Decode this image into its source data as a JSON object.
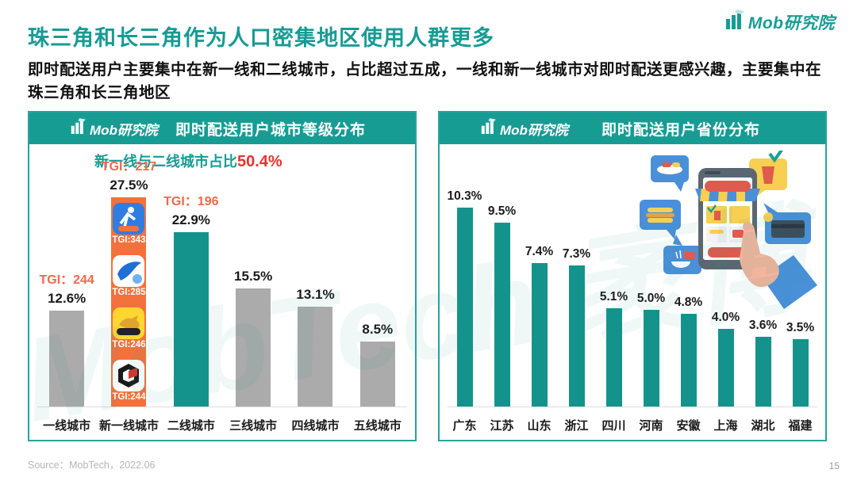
{
  "page": {
    "brand": "Mob研究院",
    "title": "珠三角和长三角作为人口密集地区使用人群更多",
    "subtitle": "即时配送用户主要集中在新一线和二线城市，占比超过五成，一线和新一线城市对即时配送更感兴趣，主要集中在珠三角和长三角地区",
    "watermark": "MobTech 袤博",
    "source": "Source：MobTech，2022.06",
    "page_number": "15"
  },
  "colors": {
    "teal": "#179c94",
    "bar_teal": "#14938d",
    "bar_gray": "#ababab",
    "bar_orange": "#f4713c",
    "tgi_orange": "#eb6a4a",
    "highlight_red": "#e8322e"
  },
  "chart_data": [
    {
      "type": "bar",
      "title": "即时配送用户城市等级分布",
      "categories": [
        "一线城市",
        "新一线城市",
        "二线城市",
        "三线城市",
        "四线城市",
        "五线城市"
      ],
      "values": [
        12.6,
        27.5,
        22.9,
        15.5,
        13.1,
        8.5
      ],
      "value_labels": [
        "12.6%",
        "27.5%",
        "22.9%",
        "15.5%",
        "13.1%",
        "8.5%"
      ],
      "tgi_labels": [
        "TGI：244",
        "TGI：217",
        "TGI：196",
        "",
        "",
        ""
      ],
      "bar_color_roles": [
        "gray",
        "orange",
        "teal",
        "gray",
        "gray",
        "gray"
      ],
      "annotation_prefix": "新一线与二线城市占比",
      "annotation_value": "50.4%",
      "embedded_apps": [
        {
          "icon": "runner-delivery-app-icon",
          "tgi": "TGI:343"
        },
        {
          "icon": "hummingbird-delivery-app-icon",
          "tgi": "TGI:285"
        },
        {
          "icon": "kangaroo-delivery-app-icon",
          "label": "美团配送",
          "tgi": "TGI:246"
        },
        {
          "icon": "g-shield-delivery-app-icon",
          "tgi": "TGI:244"
        }
      ],
      "ylim": [
        0,
        30
      ],
      "grid": false,
      "legend": "none"
    },
    {
      "type": "bar",
      "title": "即时配送用户省份分布",
      "categories": [
        "广东",
        "江苏",
        "山东",
        "浙江",
        "四川",
        "河南",
        "安徽",
        "上海",
        "湖北",
        "福建"
      ],
      "values": [
        10.3,
        9.5,
        7.4,
        7.3,
        5.1,
        5.0,
        4.8,
        4.0,
        3.6,
        3.5
      ],
      "value_labels": [
        "10.3%",
        "9.5%",
        "7.4%",
        "7.3%",
        "5.1%",
        "5.0%",
        "4.8%",
        "4.0%",
        "3.6%",
        "3.5%"
      ],
      "ylim": [
        0,
        11
      ],
      "grid": false,
      "legend": "none"
    }
  ]
}
